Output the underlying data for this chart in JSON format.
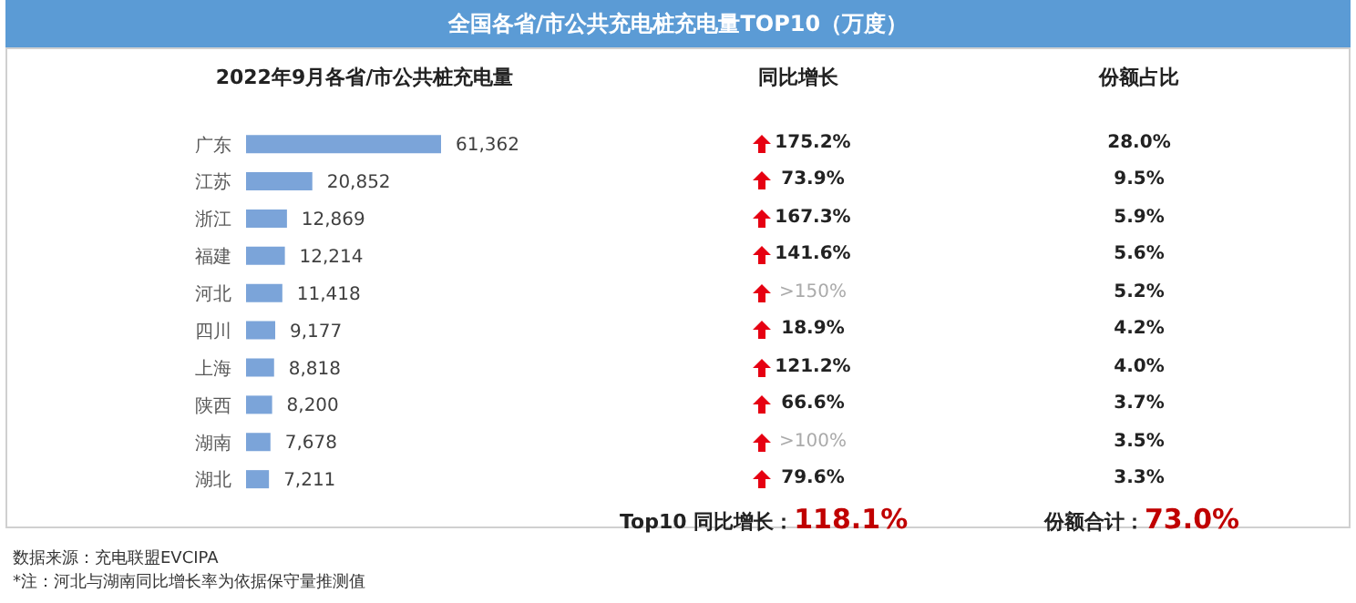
{
  "chart_data": {
    "type": "bar",
    "orientation": "horizontal",
    "title": "全国各省/市公共充电桩充电量TOP10（万度）",
    "subtitle": "2022年9月各省/市公共桩充电量",
    "categories": [
      "广东",
      "江苏",
      "浙江",
      "福建",
      "河北",
      "四川",
      "上海",
      "陕西",
      "湖南",
      "湖北"
    ],
    "series": [
      {
        "color": "#7ba4d9",
        "values": [
          61362,
          20852,
          12869,
          12214,
          11418,
          9177,
          8818,
          8200,
          7678,
          7211
        ],
        "value_labels": [
          "61,362",
          "20,852",
          "12,869",
          "12,214",
          "11,418",
          "9,177",
          "8,818",
          "8,200",
          "7,678",
          "7,211"
        ]
      }
    ],
    "annotations": [
      "同比增长",
      "份额占比",
      "175.2%",
      "73.9%",
      "167.3%",
      "141.6%",
      ">150%",
      "18.9%",
      "121.2%",
      "66.6%",
      ">100%",
      "79.6%",
      "28.0%",
      "9.5%",
      "5.9%",
      "5.6%",
      "5.2%",
      "4.2%",
      "4.0%",
      "3.7%",
      "3.5%",
      "3.3%",
      "Top10 同比增长：",
      "118.1%",
      "份额合计：",
      "73.0%",
      "数据来源：充电联盟EVCIPA",
      "*注：河北与湖南同比增长率为依据保守量推测值"
    ],
    "grid": false,
    "legend": false
  }
}
